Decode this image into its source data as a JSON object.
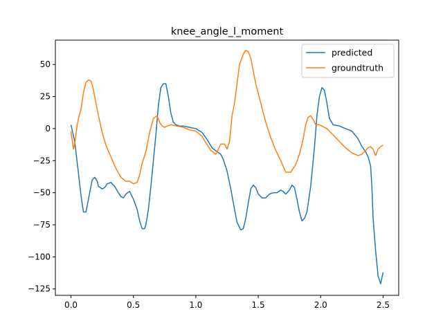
{
  "chart_data": {
    "type": "line",
    "title": "knee_angle_l_moment",
    "xlabel": "",
    "ylabel": "",
    "xlim": [
      -0.125,
      2.625
    ],
    "ylim": [
      -130,
      69
    ],
    "xticks": [
      0.0,
      0.5,
      1.0,
      1.5,
      2.0,
      2.5
    ],
    "xtick_labels": [
      "0.0",
      "0.5",
      "1.0",
      "1.5",
      "2.0",
      "2.5"
    ],
    "yticks": [
      50,
      25,
      0,
      -25,
      -50,
      -75,
      -100,
      -125
    ],
    "ytick_labels": [
      "50",
      "25",
      "0",
      "−25",
      "−50",
      "−75",
      "−100",
      "−125"
    ],
    "grid": false,
    "legend_position": "top-right",
    "series": [
      {
        "name": "predicted",
        "color": "#1f77b4",
        "x": [
          0.0,
          0.03,
          0.06,
          0.08,
          0.1,
          0.12,
          0.13,
          0.15,
          0.17,
          0.19,
          0.21,
          0.22,
          0.25,
          0.27,
          0.29,
          0.32,
          0.35,
          0.38,
          0.4,
          0.42,
          0.44,
          0.47,
          0.5,
          0.53,
          0.55,
          0.57,
          0.59,
          0.6,
          0.62,
          0.64,
          0.66,
          0.68,
          0.7,
          0.72,
          0.74,
          0.76,
          0.78,
          0.8,
          0.82,
          0.84,
          0.87,
          0.9,
          0.95,
          1.0,
          1.05,
          1.1,
          1.13,
          1.17,
          1.2,
          1.22,
          1.25,
          1.28,
          1.31,
          1.33,
          1.36,
          1.38,
          1.4,
          1.42,
          1.44,
          1.46,
          1.48,
          1.5,
          1.53,
          1.56,
          1.59,
          1.62,
          1.65,
          1.68,
          1.7,
          1.72,
          1.75,
          1.77,
          1.79,
          1.81,
          1.83,
          1.85,
          1.87,
          1.89,
          1.92,
          1.95,
          1.97,
          1.99,
          2.01,
          2.03,
          2.05,
          2.07,
          2.1,
          2.15,
          2.2,
          2.25,
          2.3,
          2.33,
          2.36,
          2.38,
          2.4,
          2.41,
          2.42,
          2.44,
          2.46,
          2.48,
          2.5
        ],
        "y": [
          3,
          -10,
          -35,
          -52,
          -65,
          -65,
          -60,
          -50,
          -40,
          -38,
          -41,
          -45,
          -47,
          -46,
          -43,
          -42,
          -45,
          -50,
          -53,
          -54,
          -51,
          -49,
          -55,
          -63,
          -72,
          -78,
          -78,
          -75,
          -63,
          -45,
          -25,
          -5,
          18,
          32,
          35,
          35,
          25,
          12,
          5,
          3,
          2,
          2,
          1,
          0,
          -3,
          -10,
          -15,
          -18,
          -20,
          -24,
          -33,
          -47,
          -63,
          -73,
          -79,
          -78,
          -70,
          -58,
          -47,
          -44,
          -46,
          -51,
          -54,
          -54,
          -51,
          -50,
          -50,
          -48,
          -49,
          -51,
          -48,
          -44,
          -46,
          -55,
          -65,
          -72,
          -70,
          -65,
          -45,
          -15,
          10,
          25,
          32,
          30,
          20,
          8,
          3,
          2,
          0,
          -2,
          -8,
          -14,
          -18,
          -22,
          -29,
          -45,
          -70,
          -95,
          -115,
          -121,
          -112
        ]
      },
      {
        "name": "groundtruth",
        "color": "#ff7f0e",
        "x": [
          0.0,
          0.02,
          0.03,
          0.05,
          0.06,
          0.08,
          0.1,
          0.12,
          0.14,
          0.16,
          0.17,
          0.18,
          0.2,
          0.22,
          0.25,
          0.28,
          0.32,
          0.36,
          0.4,
          0.44,
          0.47,
          0.5,
          0.53,
          0.55,
          0.57,
          0.6,
          0.63,
          0.66,
          0.69,
          0.71,
          0.73,
          0.75,
          0.77,
          0.8,
          0.85,
          0.9,
          0.95,
          1.0,
          1.05,
          1.08,
          1.12,
          1.16,
          1.2,
          1.23,
          1.25,
          1.27,
          1.29,
          1.31,
          1.33,
          1.35,
          1.38,
          1.4,
          1.42,
          1.44,
          1.46,
          1.48,
          1.52,
          1.56,
          1.6,
          1.64,
          1.68,
          1.72,
          1.76,
          1.8,
          1.83,
          1.86,
          1.88,
          1.9,
          1.92,
          1.94,
          1.96,
          1.97,
          1.99,
          2.01,
          2.03,
          2.05,
          2.1,
          2.15,
          2.2,
          2.25,
          2.3,
          2.33,
          2.36,
          2.38,
          2.4,
          2.42,
          2.44,
          2.46,
          2.48,
          2.5
        ],
        "y": [
          -2,
          -16,
          -12,
          3,
          8,
          15,
          28,
          36,
          38,
          37,
          34,
          30,
          20,
          10,
          -3,
          -13,
          -22,
          -31,
          -38,
          -41,
          -41,
          -43,
          -42,
          -36,
          -27,
          -18,
          -3,
          8,
          10,
          5,
          2,
          1,
          2,
          3,
          2,
          1,
          -1,
          -2,
          -6,
          -11,
          -17,
          -20,
          -12,
          -12,
          -16,
          -10,
          10,
          20,
          35,
          50,
          58,
          61,
          60,
          55,
          45,
          35,
          20,
          5,
          -7,
          -17,
          -25,
          -34,
          -34,
          -28,
          -20,
          -8,
          3,
          9,
          10,
          7,
          3,
          3,
          3,
          2,
          1,
          0,
          -5,
          -10,
          -15,
          -19,
          -21,
          -20,
          -17,
          -15,
          -14,
          -16,
          -21,
          -16,
          -14,
          -13
        ]
      }
    ]
  }
}
